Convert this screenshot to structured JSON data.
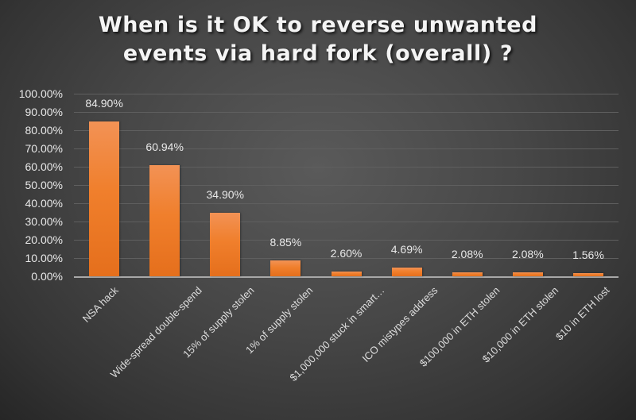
{
  "chart_data": {
    "type": "bar",
    "title": "When is it OK to reverse unwanted events via hard fork (overall) ?",
    "title_lines": [
      "When is it OK to reverse unwanted",
      "events via hard fork (overall) ?"
    ],
    "categories": [
      "NSA hack",
      "Wide-spread double-spend",
      "15% of supply stolen",
      "1% of supply stolen",
      "$1,000,000 stuck in smart…",
      "ICO mistypes address",
      "$100,000 in ETH stolen",
      "$10,000 in ETH stolen",
      "$10 in ETH lost"
    ],
    "values": [
      84.9,
      60.94,
      34.9,
      8.85,
      2.6,
      4.69,
      2.08,
      2.08,
      1.56
    ],
    "data_labels": [
      "84.90%",
      "60.94%",
      "34.90%",
      "8.85%",
      "2.60%",
      "4.69%",
      "2.08%",
      "2.08%",
      "1.56%"
    ],
    "xlabel": "",
    "ylabel": "",
    "ylim": [
      0,
      100
    ],
    "yticks": [
      "0.00%",
      "10.00%",
      "20.00%",
      "30.00%",
      "40.00%",
      "50.00%",
      "60.00%",
      "70.00%",
      "80.00%",
      "90.00%",
      "100.00%"
    ],
    "grid": true,
    "legend": null,
    "colors": {
      "bar": "#f07f2c",
      "background": "#474747",
      "text": "#e8e8e8"
    }
  }
}
